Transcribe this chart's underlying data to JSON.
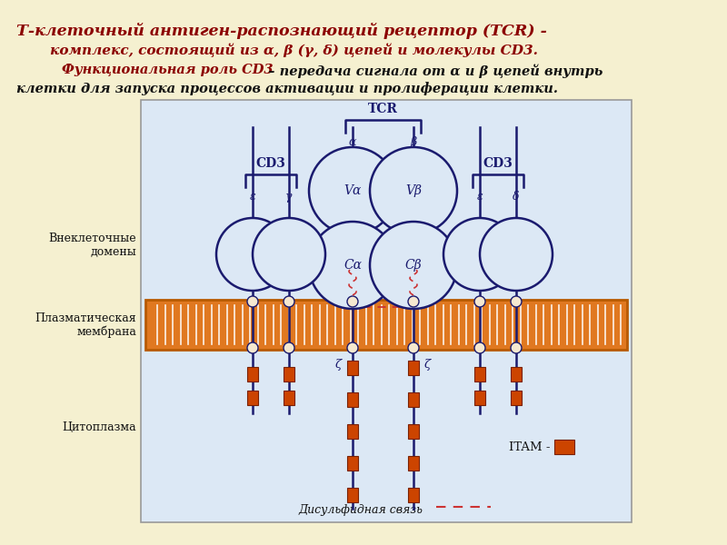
{
  "bg_color": "#f5f0d0",
  "diagram_bg": "#dce8f5",
  "membrane_color": "#e07820",
  "membrane_dark": "#b85a00",
  "line_color": "#1a1a6e",
  "dashed_color": "#cc3333",
  "itam_color": "#cc4400",
  "text_color": "#111111",
  "title_color": "#8b0000",
  "cd3_color": "#8b0000",
  "title1": "Т-клеточный антиген-распознающий рецептор (TCR) -",
  "title2": "комплекс, состоящий из α, β (γ, δ) цепей и молекулы CD3.",
  "func_label": "Функциональная роль CD3",
  "func_text": " – передача сигнала от α и β цепей внутрь",
  "func_text2": "клетки для запуска процессов активации и пролиферации клетки.",
  "label_extracell": "Внеклеточные\nдомены",
  "label_plasma": "Плазматическая\nмембрана",
  "label_cytoplasm": "Цитоплазма",
  "label_tcr": "TCR",
  "label_alpha": "α",
  "label_beta": "β",
  "label_Va": "Vα",
  "label_Vb": "Vβ",
  "label_Ca": "Cα",
  "label_Cb": "Cβ",
  "label_CD3_left": "CD3",
  "label_CD3_right": "CD3",
  "label_eps_left": "ε",
  "label_gamma": "γ",
  "label_eps_right": "ε",
  "label_delta": "δ",
  "label_zeta1": "ζ",
  "label_zeta2": "ζ",
  "label_itam": "ITAM - ",
  "label_disulf": "Дисульфидная связь"
}
